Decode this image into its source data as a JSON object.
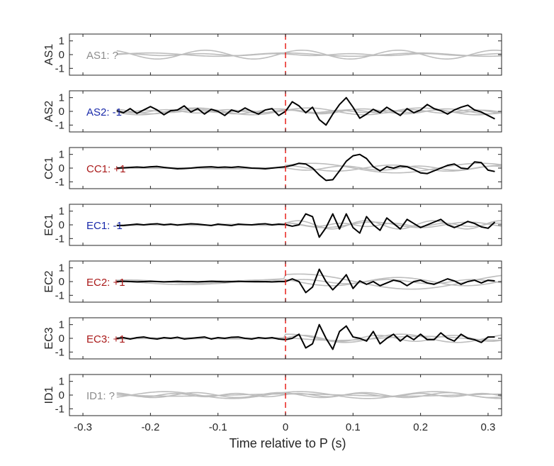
{
  "chart_data": {
    "type": "line",
    "xlabel": "Time relative to P (s)",
    "xlim": [
      -0.32,
      0.32
    ],
    "ylim": [
      -1.5,
      1.5
    ],
    "xticks": [
      -0.3,
      -0.2,
      -0.1,
      0,
      0.1,
      0.2,
      0.3
    ],
    "xtick_labels": [
      "-0.3",
      "-0.2",
      "-0.1",
      "0",
      "0.1",
      "0.2",
      "0.3"
    ],
    "yticks": [
      -1,
      0,
      1
    ],
    "ytick_labels": [
      "-1",
      "0",
      "1"
    ],
    "marker_time": 0,
    "colors": {
      "axis": "#262626",
      "background_trace": "#bdbdbd",
      "main_trace": "#000000",
      "marker": "#e8201c",
      "polarity_positive": "#aa1a1a",
      "polarity_negative": "#1a2aaa",
      "polarity_unknown": "#8c8c8c"
    },
    "panels": [
      {
        "ylabel": "AS1",
        "label": "AS1: ?",
        "polarity": "unknown",
        "main": null,
        "background_traces": [
          {
            "amp": 0.32,
            "freq": 7,
            "phase": 0.5,
            "decay": 0
          },
          {
            "amp": 0.12,
            "freq": 5,
            "phase": 1.6,
            "decay": 0
          },
          {
            "amp": 0.07,
            "freq": 9,
            "phase": 2.4,
            "decay": 0
          }
        ]
      },
      {
        "ylabel": "AS2",
        "label": "AS2: -1",
        "polarity": "negative",
        "main": {
          "t": [
            -0.25,
            -0.24,
            -0.23,
            -0.22,
            -0.21,
            -0.2,
            -0.19,
            -0.18,
            -0.17,
            -0.16,
            -0.15,
            -0.14,
            -0.13,
            -0.12,
            -0.11,
            -0.1,
            -0.09,
            -0.08,
            -0.07,
            -0.06,
            -0.05,
            -0.04,
            -0.03,
            -0.02,
            -0.01,
            0,
            0.01,
            0.02,
            0.03,
            0.04,
            0.05,
            0.06,
            0.07,
            0.08,
            0.09,
            0.1,
            0.11,
            0.12,
            0.13,
            0.14,
            0.15,
            0.16,
            0.17,
            0.18,
            0.19,
            0.2,
            0.21,
            0.22,
            0.23,
            0.24,
            0.25,
            0.26,
            0.27,
            0.28,
            0.29,
            0.3,
            0.31
          ],
          "y": [
            0.05,
            -0.1,
            0.2,
            -0.15,
            0.1,
            0.35,
            0.1,
            -0.25,
            0.05,
            0.1,
            0.4,
            -0.05,
            0.2,
            -0.2,
            0.15,
            0.0,
            -0.3,
            0.1,
            -0.05,
            0.25,
            0.0,
            -0.2,
            0.1,
            0.2,
            -0.3,
            0.0,
            0.7,
            0.4,
            -0.1,
            0.3,
            -0.6,
            -1.0,
            -0.2,
            0.5,
            1.0,
            0.3,
            -0.5,
            -0.2,
            0.15,
            -0.1,
            0.3,
            0.0,
            -0.3,
            0.2,
            -0.1,
            0.1,
            0.5,
            0.2,
            0.05,
            -0.2,
            0.1,
            0.3,
            0.45,
            0.1,
            -0.05,
            -0.3,
            -0.55
          ]
        },
        "background_traces": [
          {
            "amp": 0.25,
            "freq": 6,
            "phase": 0.3,
            "decay": 0
          },
          {
            "amp": 0.12,
            "freq": 11,
            "phase": 1.2,
            "decay": 0
          },
          {
            "amp": 0.18,
            "freq": 8,
            "phase": 2.1,
            "decay": 0
          },
          {
            "amp": 0.08,
            "freq": 14,
            "phase": 0.8,
            "decay": 0
          }
        ]
      },
      {
        "ylabel": "CC1",
        "label": "CC1: +1",
        "polarity": "positive",
        "main": {
          "t": [
            -0.25,
            -0.24,
            -0.23,
            -0.22,
            -0.21,
            -0.2,
            -0.19,
            -0.18,
            -0.17,
            -0.16,
            -0.15,
            -0.14,
            -0.13,
            -0.12,
            -0.11,
            -0.1,
            -0.09,
            -0.08,
            -0.07,
            -0.06,
            -0.05,
            -0.04,
            -0.03,
            -0.02,
            -0.01,
            0,
            0.01,
            0.02,
            0.03,
            0.04,
            0.05,
            0.06,
            0.07,
            0.08,
            0.09,
            0.1,
            0.11,
            0.12,
            0.13,
            0.14,
            0.15,
            0.16,
            0.17,
            0.18,
            0.19,
            0.2,
            0.21,
            0.22,
            0.23,
            0.24,
            0.25,
            0.26,
            0.27,
            0.28,
            0.29,
            0.3,
            0.31
          ],
          "y": [
            0.0,
            0.02,
            0.05,
            0.08,
            0.05,
            0.1,
            0.12,
            0.05,
            0.0,
            -0.05,
            -0.03,
            0.0,
            0.05,
            0.08,
            0.1,
            0.05,
            0.08,
            0.05,
            0.1,
            0.05,
            0.0,
            -0.02,
            -0.05,
            0.0,
            0.05,
            0.1,
            0.2,
            0.35,
            0.3,
            0.0,
            -0.5,
            -0.9,
            -0.85,
            -0.2,
            0.5,
            0.9,
            1.0,
            0.7,
            0.1,
            -0.2,
            0.1,
            0.0,
            0.15,
            0.1,
            -0.1,
            -0.35,
            -0.4,
            -0.2,
            0.0,
            0.2,
            0.3,
            0.0,
            -0.05,
            0.45,
            0.4,
            -0.15,
            -0.25
          ]
        },
        "background_traces": [
          {
            "amp": 0.35,
            "freq": 4,
            "phase": 0.6,
            "decay": 1
          },
          {
            "amp": 0.22,
            "freq": 6,
            "phase": 1.9,
            "decay": 1
          },
          {
            "amp": 0.15,
            "freq": 9,
            "phase": 3.0,
            "decay": 1
          }
        ]
      },
      {
        "ylabel": "EC1",
        "label": "EC1: -1",
        "polarity": "negative",
        "main": {
          "t": [
            -0.25,
            -0.24,
            -0.23,
            -0.22,
            -0.21,
            -0.2,
            -0.19,
            -0.18,
            -0.17,
            -0.16,
            -0.15,
            -0.14,
            -0.13,
            -0.12,
            -0.11,
            -0.1,
            -0.09,
            -0.08,
            -0.07,
            -0.06,
            -0.05,
            -0.04,
            -0.03,
            -0.02,
            -0.01,
            0,
            0.01,
            0.02,
            0.03,
            0.04,
            0.05,
            0.06,
            0.07,
            0.08,
            0.09,
            0.1,
            0.11,
            0.12,
            0.13,
            0.14,
            0.15,
            0.16,
            0.17,
            0.18,
            0.19,
            0.2,
            0.21,
            0.22,
            0.23,
            0.24,
            0.25,
            0.26,
            0.27,
            0.28,
            0.29,
            0.3,
            0.31
          ],
          "y": [
            -0.05,
            -0.05,
            0.0,
            0.05,
            0.0,
            0.05,
            0.08,
            0.0,
            0.05,
            -0.02,
            0.03,
            0.08,
            0.05,
            0.0,
            -0.05,
            0.05,
            0.0,
            -0.05,
            0.05,
            0.02,
            0.0,
            0.05,
            0.08,
            0.0,
            0.05,
            0.02,
            -0.1,
            0.0,
            0.8,
            0.6,
            -0.9,
            -0.2,
            0.8,
            -0.3,
            0.8,
            -0.2,
            -0.6,
            0.6,
            0.0,
            -0.4,
            0.5,
            0.1,
            -0.3,
            0.4,
            0.1,
            -0.2,
            0.0,
            0.2,
            0.4,
            0.0,
            -0.2,
            0.0,
            0.25,
            0.1,
            -0.15,
            -0.25,
            0.2
          ]
        },
        "background_traces": [
          {
            "amp": 0.3,
            "freq": 10,
            "phase": 0.4,
            "decay": 1
          },
          {
            "amp": 0.2,
            "freq": 7,
            "phase": 2.2,
            "decay": 1
          },
          {
            "amp": 0.12,
            "freq": 13,
            "phase": 1.1,
            "decay": 1
          }
        ]
      },
      {
        "ylabel": "EC2",
        "label": "EC2: +1",
        "polarity": "positive",
        "main": {
          "t": [
            -0.25,
            -0.24,
            -0.23,
            -0.22,
            -0.21,
            -0.2,
            -0.19,
            -0.18,
            -0.17,
            -0.16,
            -0.15,
            -0.14,
            -0.13,
            -0.12,
            -0.11,
            -0.1,
            -0.09,
            -0.08,
            -0.07,
            -0.06,
            -0.05,
            -0.04,
            -0.03,
            -0.02,
            -0.01,
            0,
            0.01,
            0.02,
            0.03,
            0.04,
            0.05,
            0.06,
            0.07,
            0.08,
            0.09,
            0.1,
            0.11,
            0.12,
            0.13,
            0.14,
            0.15,
            0.16,
            0.17,
            0.18,
            0.19,
            0.2,
            0.21,
            0.22,
            0.23,
            0.24,
            0.25,
            0.26,
            0.27,
            0.28,
            0.29,
            0.3,
            0.31
          ],
          "y": [
            0.0,
            0.02,
            0.0,
            -0.02,
            0.0,
            0.02,
            0.0,
            -0.02,
            0.0,
            0.02,
            0.0,
            0.0,
            -0.02,
            0.0,
            0.02,
            0.0,
            -0.02,
            0.0,
            0.02,
            0.0,
            0.0,
            0.0,
            0.0,
            -0.02,
            0.0,
            0.0,
            0.2,
            0.0,
            -0.8,
            -0.4,
            0.9,
            0.0,
            -0.6,
            -0.1,
            0.5,
            -0.5,
            0.05,
            -0.2,
            0.0,
            -0.3,
            -0.1,
            0.1,
            0.0,
            -0.3,
            0.0,
            0.1,
            -0.1,
            -0.2,
            0.0,
            0.2,
            0.05,
            -0.2,
            0.0,
            0.1,
            -0.1,
            0.1,
            0.05
          ]
        },
        "background_traces": [
          {
            "amp": 0.55,
            "freq": 3,
            "phase": 1.2,
            "decay": 2
          },
          {
            "amp": 0.3,
            "freq": 5,
            "phase": 2.6,
            "decay": 2
          },
          {
            "amp": 0.15,
            "freq": 8,
            "phase": 0.2,
            "decay": 2
          }
        ]
      },
      {
        "ylabel": "EC3",
        "label": "EC3: +1",
        "polarity": "positive",
        "main": {
          "t": [
            -0.25,
            -0.24,
            -0.23,
            -0.22,
            -0.21,
            -0.2,
            -0.19,
            -0.18,
            -0.17,
            -0.16,
            -0.15,
            -0.14,
            -0.13,
            -0.12,
            -0.11,
            -0.1,
            -0.09,
            -0.08,
            -0.07,
            -0.06,
            -0.05,
            -0.04,
            -0.03,
            -0.02,
            -0.01,
            0,
            0.01,
            0.02,
            0.03,
            0.04,
            0.05,
            0.06,
            0.07,
            0.08,
            0.09,
            0.1,
            0.11,
            0.12,
            0.13,
            0.14,
            0.15,
            0.16,
            0.17,
            0.18,
            0.19,
            0.2,
            0.21,
            0.22,
            0.23,
            0.24,
            0.25,
            0.26,
            0.27,
            0.28,
            0.29,
            0.3,
            0.31
          ],
          "y": [
            0.0,
            0.05,
            -0.05,
            0.05,
            0.1,
            0.0,
            -0.05,
            0.05,
            0.0,
            0.08,
            -0.05,
            0.0,
            0.05,
            0.1,
            -0.05,
            0.05,
            0.0,
            0.08,
            0.1,
            0.0,
            -0.05,
            0.05,
            0.0,
            0.05,
            -0.05,
            -0.1,
            0.0,
            0.3,
            -0.7,
            -0.4,
            1.0,
            0.0,
            -0.8,
            0.5,
            0.9,
            0.1,
            0.0,
            -0.2,
            0.5,
            -0.4,
            0.0,
            0.3,
            -0.2,
            0.2,
            -0.1,
            0.3,
            -0.1,
            -0.1,
            0.4,
            0.0,
            -0.2,
            0.3,
            0.0,
            -0.1,
            -0.3,
            0.1,
            0.1
          ]
        },
        "background_traces": [
          {
            "amp": 0.3,
            "freq": 6,
            "phase": 1.4,
            "decay": 1
          },
          {
            "amp": 0.22,
            "freq": 9,
            "phase": 0.1,
            "decay": 1
          },
          {
            "amp": 0.15,
            "freq": 4,
            "phase": 2.8,
            "decay": 1
          }
        ]
      },
      {
        "ylabel": "ID1",
        "label": "ID1: ?",
        "polarity": "unknown",
        "main": null,
        "background_traces": [
          {
            "amp": 0.25,
            "freq": 5,
            "phase": 0.9,
            "decay": 0
          },
          {
            "amp": 0.18,
            "freq": 8,
            "phase": 2.0,
            "decay": 0
          },
          {
            "amp": 0.12,
            "freq": 11,
            "phase": 0.3,
            "decay": 0
          },
          {
            "amp": 0.08,
            "freq": 3,
            "phase": 1.5,
            "decay": 0
          }
        ]
      }
    ]
  }
}
